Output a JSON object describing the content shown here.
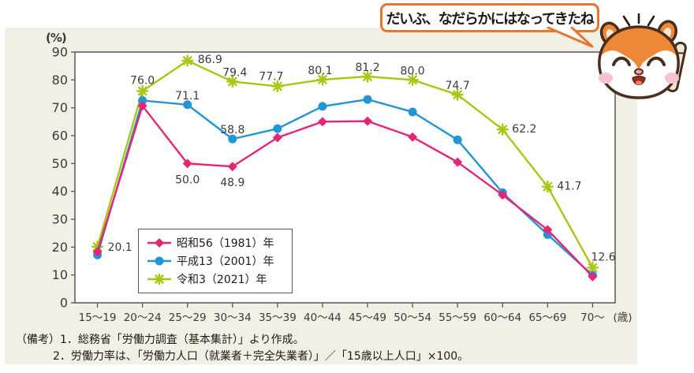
{
  "speech_bubble": {
    "text": "だいぶ、なだらかにはなってきたね"
  },
  "mascot": {
    "icon": "squirrel-mascot"
  },
  "chart_data": {
    "type": "line",
    "y_unit_label": "(%)",
    "x_unit_label": "(歳)",
    "ylim": [
      0,
      90
    ],
    "ytick_step": 10,
    "grid": false,
    "legend_position": "inside-bottom-left",
    "categories": [
      "15〜19",
      "20〜24",
      "25〜29",
      "30〜34",
      "35〜39",
      "40〜44",
      "45〜49",
      "50〜54",
      "55〜59",
      "60〜64",
      "65〜69",
      "70〜"
    ],
    "series": [
      {
        "name": "昭和56（1981）年",
        "color": "#e52576",
        "marker": "diamond",
        "values": [
          18.3,
          70.7,
          50.0,
          48.9,
          59.3,
          65.0,
          65.2,
          59.5,
          50.5,
          38.7,
          26.2,
          9.4
        ],
        "point_labels": [
          null,
          null,
          "50.0",
          "48.9",
          null,
          null,
          null,
          null,
          null,
          null,
          null,
          null
        ]
      },
      {
        "name": "平成13（2001）年",
        "color": "#2296d4",
        "marker": "circle",
        "values": [
          17.2,
          72.6,
          71.1,
          58.8,
          62.5,
          70.5,
          73.0,
          68.5,
          58.5,
          39.5,
          24.5,
          9.9
        ],
        "point_labels": [
          null,
          null,
          "71.1",
          "58.8",
          null,
          null,
          null,
          null,
          null,
          null,
          null,
          null
        ]
      },
      {
        "name": "令和3（2021）年",
        "color": "#a8c715",
        "marker": "star",
        "values": [
          20.1,
          76.0,
          86.9,
          79.4,
          77.7,
          80.1,
          81.2,
          80.0,
          74.7,
          62.2,
          41.7,
          12.6
        ],
        "point_labels": [
          "20.1",
          "76.0",
          "86.9",
          "79.4",
          "77.7",
          "80.1",
          "81.2",
          "80.0",
          "74.7",
          "62.2",
          "41.7",
          "12.6"
        ]
      }
    ]
  },
  "notes": {
    "prefix": "（備考）",
    "items": [
      "1．総務省「労働力調査（基本集計）」より作成。",
      "2．労働力率は、「労働力人口（就業者＋完全失業者）」／「15歳以上人口」×100。"
    ]
  },
  "colors": {
    "panel_bg": "#f2efe5",
    "plot_bg": "#ffffff",
    "axis": "#595757",
    "label_text": "#3e3a39",
    "bubble_border": "#e8762e",
    "mascot_orange": "#ef8836"
  }
}
